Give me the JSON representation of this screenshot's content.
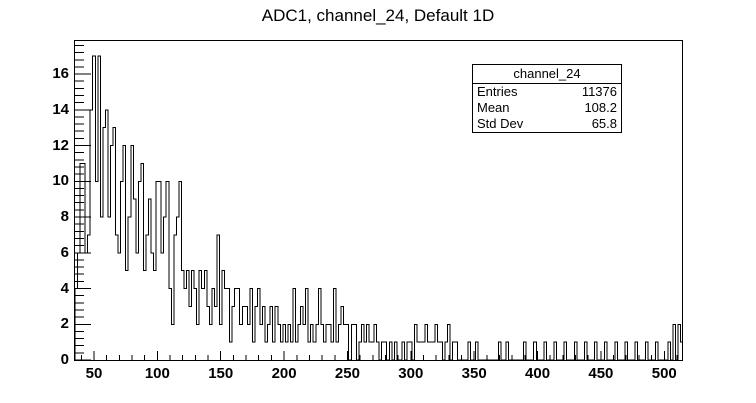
{
  "title": "ADC1, channel_24, Default 1D",
  "stats_box": {
    "title": "channel_24",
    "rows": [
      {
        "label": "Entries",
        "value": "11376"
      },
      {
        "label": "Mean",
        "value": "108.2"
      },
      {
        "label": "Std Dev",
        "value": "65.8"
      }
    ]
  },
  "chart_data": {
    "type": "bar",
    "subtype": "step-histogram",
    "title": "ADC1, channel_24, Default 1D",
    "xlabel": "",
    "ylabel": "",
    "legend": "none",
    "grid": false,
    "line_color": "#000000",
    "background_color": "#ffffff",
    "x_range": [
      35,
      514
    ],
    "y_range": [
      0,
      17.85
    ],
    "x_major_ticks": [
      50,
      100,
      150,
      200,
      250,
      300,
      350,
      400,
      450,
      500
    ],
    "x_minor_step": 10,
    "y_major_ticks": [
      0,
      2,
      4,
      6,
      8,
      10,
      12,
      14,
      16
    ],
    "y_minor_step": 0.4,
    "bin_start": 35,
    "bin_width": 2,
    "counts": [
      4,
      6,
      11,
      11,
      6,
      7,
      14,
      17,
      10,
      17,
      8,
      13,
      14,
      8,
      12,
      13,
      7,
      6,
      10,
      12,
      5,
      8,
      12,
      9,
      6,
      10,
      11,
      5,
      7,
      9,
      6,
      5,
      10,
      10,
      6,
      8,
      10,
      4,
      2,
      7,
      8,
      10,
      5,
      4,
      5,
      3,
      5,
      4,
      2,
      5,
      4,
      5,
      3,
      2,
      4,
      3,
      7,
      2,
      5,
      4,
      4,
      1,
      3,
      4,
      4,
      2,
      3,
      3,
      2,
      4,
      1,
      3,
      4,
      2,
      3,
      1,
      2,
      3,
      1,
      3,
      2,
      1,
      2,
      1,
      2,
      1,
      4,
      1,
      2,
      3,
      2,
      4,
      1,
      2,
      1,
      2,
      4,
      2,
      1,
      2,
      2,
      1,
      4,
      1,
      2,
      3,
      2,
      2,
      0,
      2,
      2,
      0,
      1,
      2,
      1,
      2,
      1,
      1,
      2,
      1,
      0,
      1,
      1,
      0,
      1,
      0,
      1,
      0,
      0,
      1,
      0,
      1,
      1,
      0,
      2,
      1,
      1,
      1,
      2,
      1,
      1,
      1,
      2,
      1,
      1,
      0,
      1,
      2,
      0,
      1,
      1,
      0,
      0,
      0,
      0,
      1,
      0,
      0,
      1,
      0,
      0,
      0,
      0,
      0,
      0,
      0,
      0,
      1,
      0,
      0,
      1,
      0,
      0,
      0,
      0,
      0,
      0,
      1,
      0,
      0,
      0,
      1,
      0,
      0,
      0,
      1,
      0,
      0,
      0,
      1,
      0,
      0,
      0,
      1,
      0,
      0,
      0,
      1,
      0,
      0,
      0,
      1,
      0,
      0,
      0,
      1,
      0,
      0,
      0,
      1,
      0,
      0,
      0,
      1,
      0,
      0,
      0,
      1,
      0,
      0,
      0,
      1,
      0,
      0,
      0,
      1,
      0,
      0,
      0,
      1,
      0,
      0,
      0,
      0,
      1,
      0,
      2,
      0,
      2,
      1
    ],
    "stats": {
      "entries": 11376,
      "mean": 108.2,
      "std_dev": 65.8
    }
  }
}
